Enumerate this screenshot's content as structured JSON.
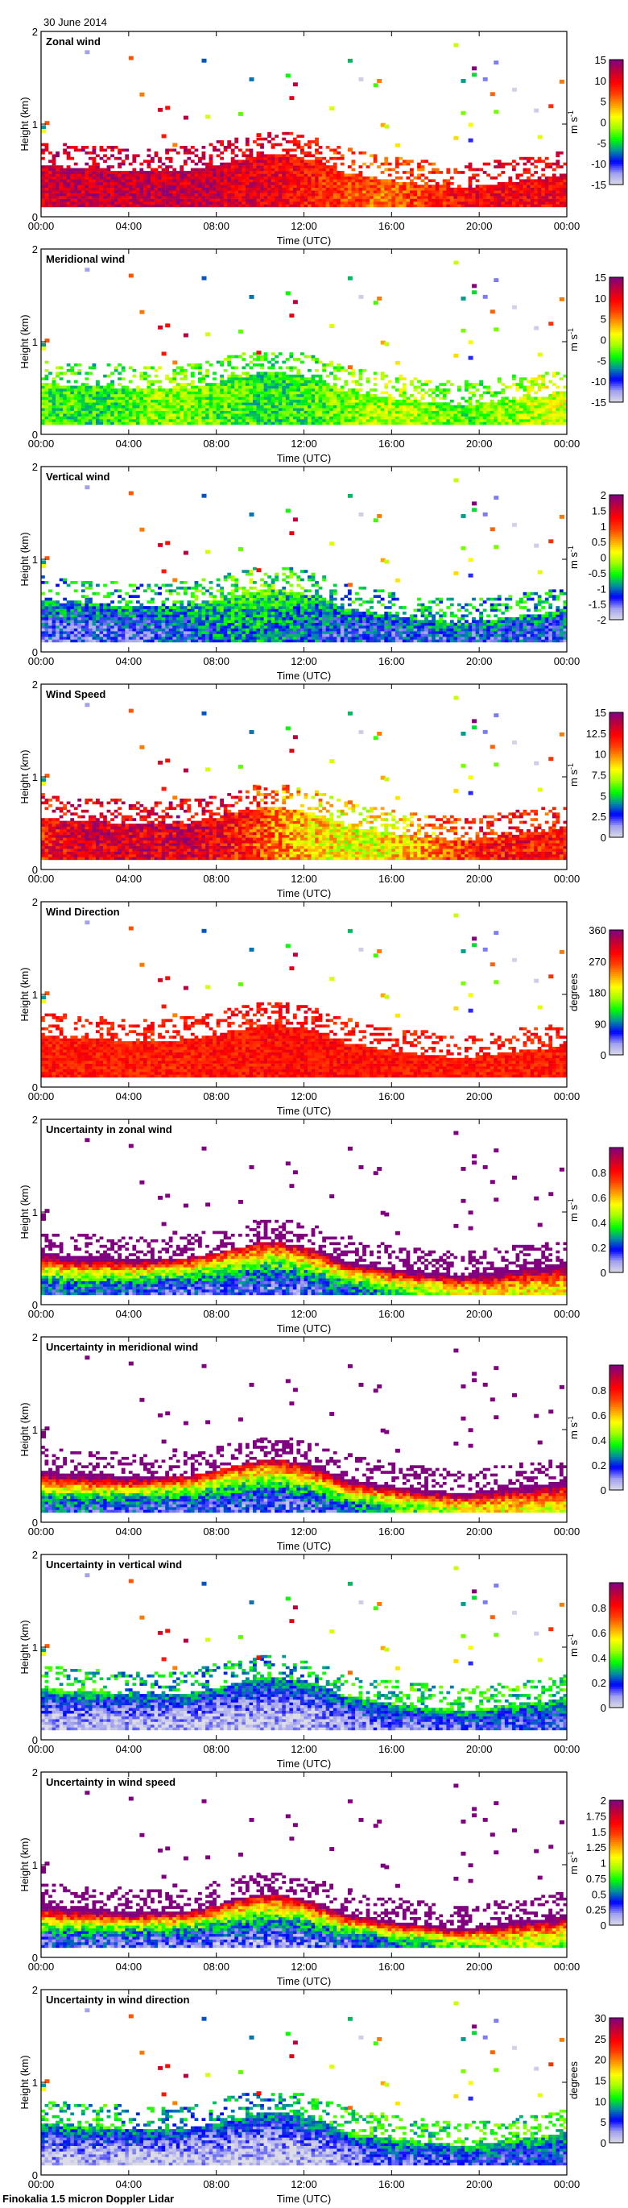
{
  "header": {
    "date": "30 June 2014"
  },
  "footer": {
    "instrument": "Finokalia 1.5 micron Doppler Lidar"
  },
  "axes": {
    "xlabel": "Time (UTC)",
    "ylabel": "Height (km)",
    "xticks": [
      "00:00",
      "04:00",
      "08:00",
      "12:00",
      "16:00",
      "20:00",
      "00:00"
    ],
    "xrange_hours": [
      0,
      24
    ],
    "yticks": [
      "0",
      "1",
      "2"
    ],
    "yrange_km": [
      0,
      2
    ]
  },
  "colormap": [
    "#dcdce6",
    "#a0a0f0",
    "#0000ff",
    "#0090a0",
    "#00ff00",
    "#a0ff00",
    "#ffff00",
    "#ffa000",
    "#ff4000",
    "#ff0000",
    "#c0003a",
    "#800080"
  ],
  "chart_data": [
    {
      "type": "heatmap",
      "title": "Zonal wind",
      "unit": "m s",
      "unit_sup": "-1",
      "range": [
        -15,
        15
      ],
      "ticks": [
        "-15",
        "-10",
        "-5",
        "0",
        "5",
        "10",
        "15"
      ],
      "tick_values": [
        -15,
        -10,
        -5,
        0,
        5,
        10,
        15
      ],
      "bl_top_km": [
        0.55,
        0.52,
        0.5,
        0.5,
        0.48,
        0.48,
        0.48,
        0.5,
        0.55,
        0.6,
        0.65,
        0.65,
        0.62,
        0.55,
        0.45,
        0.42,
        0.38,
        0.35,
        0.33,
        0.3,
        0.32,
        0.35,
        0.38,
        0.4,
        0.45
      ],
      "surface_values": [
        11,
        12,
        12,
        12,
        12,
        12,
        12,
        12,
        12,
        11,
        11,
        10,
        9,
        8,
        7,
        6,
        6,
        7,
        8,
        9,
        10,
        10,
        10,
        10,
        10
      ],
      "top_values": [
        11,
        12,
        12,
        12,
        12,
        12,
        12,
        12,
        12,
        11,
        11,
        10,
        9,
        8,
        7,
        6,
        6,
        7,
        8,
        9,
        10,
        10,
        10,
        10,
        10
      ],
      "noise": 3,
      "sparse": "random"
    },
    {
      "type": "heatmap",
      "title": "Meridional wind",
      "unit": "m s",
      "unit_sup": "-1",
      "range": [
        -15,
        15
      ],
      "ticks": [
        "-15",
        "-10",
        "-5",
        "0",
        "5",
        "10",
        "15"
      ],
      "tick_values": [
        -15,
        -10,
        -5,
        0,
        5,
        10,
        15
      ],
      "bl_top_km": [
        0.55,
        0.52,
        0.5,
        0.5,
        0.48,
        0.48,
        0.48,
        0.5,
        0.55,
        0.6,
        0.65,
        0.65,
        0.62,
        0.55,
        0.45,
        0.42,
        0.38,
        0.35,
        0.33,
        0.3,
        0.32,
        0.35,
        0.38,
        0.4,
        0.45
      ],
      "surface_values": [
        -3,
        -3.5,
        -4,
        -4,
        -3,
        -2,
        -2,
        -2,
        -3,
        -3,
        -4,
        -4,
        -3.5,
        -3,
        -2,
        -1,
        -1,
        -1,
        -2,
        -3,
        -3,
        -2,
        -1,
        0,
        0
      ],
      "top_values": [
        -3,
        -3.5,
        -4,
        -4,
        -3,
        -2,
        -2,
        -2,
        -3,
        -3,
        -4,
        -4,
        -3.5,
        -3,
        -2,
        -1,
        -1,
        -1,
        -2,
        -3,
        -3,
        -2,
        -1,
        0,
        0
      ],
      "noise": 3,
      "sparse": "random"
    },
    {
      "type": "heatmap",
      "title": "Vertical wind",
      "unit": "m s",
      "unit_sup": "-1",
      "range": [
        -2,
        2
      ],
      "ticks": [
        "-2",
        "-1.5",
        "-1",
        "-0.5",
        "0",
        "0.5",
        "1",
        "1.5",
        "2"
      ],
      "tick_values": [
        -2,
        -1.5,
        -1,
        -0.5,
        0,
        0.5,
        1,
        1.5,
        2
      ],
      "bl_top_km": [
        0.55,
        0.52,
        0.5,
        0.5,
        0.48,
        0.48,
        0.48,
        0.5,
        0.55,
        0.6,
        0.65,
        0.65,
        0.62,
        0.55,
        0.45,
        0.42,
        0.38,
        0.35,
        0.33,
        0.3,
        0.32,
        0.35,
        0.38,
        0.4,
        0.45
      ],
      "surface_values": [
        -1.4,
        -1.4,
        -1.4,
        -1.4,
        -1.4,
        -1.3,
        -1.3,
        -1.2,
        -1.0,
        -0.9,
        -0.9,
        -1.0,
        -1.1,
        -1.2,
        -1.3,
        -1.3,
        -1.3,
        -1.3,
        -1.3,
        -1.3,
        -1.3,
        -1.3,
        -1.3,
        -1.3,
        -1.3
      ],
      "top_values": [
        -0.8,
        -0.8,
        -0.8,
        -0.8,
        -0.8,
        -0.8,
        -0.7,
        -0.6,
        -0.5,
        -0.4,
        -0.4,
        -0.5,
        -0.6,
        -0.7,
        -0.8,
        -0.8,
        -0.8,
        -0.8,
        -0.8,
        -0.8,
        -0.8,
        -0.8,
        -0.8,
        -0.8,
        -0.8
      ],
      "noise": 0.5,
      "sparse": "random"
    },
    {
      "type": "heatmap",
      "title": "Wind Speed",
      "unit": "m s",
      "unit_sup": "-1",
      "range": [
        0,
        15
      ],
      "ticks": [
        "0",
        "2.5",
        "5",
        "7.5",
        "10",
        "12.5",
        "15"
      ],
      "tick_values": [
        0,
        2.5,
        5,
        7.5,
        10,
        12.5,
        15
      ],
      "bl_top_km": [
        0.55,
        0.52,
        0.5,
        0.5,
        0.48,
        0.48,
        0.48,
        0.5,
        0.55,
        0.6,
        0.65,
        0.65,
        0.62,
        0.55,
        0.45,
        0.42,
        0.38,
        0.35,
        0.33,
        0.3,
        0.32,
        0.35,
        0.38,
        0.4,
        0.45
      ],
      "surface_values": [
        12,
        12.5,
        13,
        13,
        13,
        13,
        13,
        13,
        12.5,
        12,
        11,
        10,
        9,
        8.5,
        8,
        8,
        8.5,
        9,
        10,
        11,
        12,
        12,
        12,
        12,
        12
      ],
      "top_values": [
        12,
        12.5,
        13,
        13,
        13,
        13,
        13,
        13,
        12.5,
        12,
        11,
        10,
        9,
        8.5,
        8,
        8,
        8.5,
        9,
        10,
        11,
        12,
        12,
        12,
        12,
        12
      ],
      "noise": 2,
      "sparse": "random"
    },
    {
      "type": "heatmap",
      "title": "Wind Direction",
      "unit": "degrees",
      "unit_sup": "",
      "range": [
        0,
        360
      ],
      "ticks": [
        "0",
        "90",
        "180",
        "270",
        "360"
      ],
      "tick_values": [
        0,
        90,
        180,
        270,
        360
      ],
      "bl_top_km": [
        0.55,
        0.52,
        0.5,
        0.5,
        0.48,
        0.48,
        0.48,
        0.5,
        0.55,
        0.6,
        0.65,
        0.65,
        0.62,
        0.55,
        0.45,
        0.42,
        0.38,
        0.35,
        0.33,
        0.3,
        0.32,
        0.35,
        0.38,
        0.4,
        0.45
      ],
      "surface_values": [
        282,
        282,
        282,
        282,
        282,
        282,
        282,
        282,
        285,
        285,
        285,
        288,
        290,
        290,
        290,
        288,
        285,
        285,
        282,
        282,
        282,
        282,
        282,
        282,
        282
      ],
      "top_values": [
        282,
        282,
        282,
        282,
        282,
        282,
        282,
        282,
        285,
        285,
        285,
        288,
        290,
        290,
        290,
        288,
        285,
        285,
        282,
        282,
        282,
        282,
        282,
        282,
        282
      ],
      "noise": 25,
      "sparse": "random"
    },
    {
      "type": "heatmap",
      "title": "Uncertainty in zonal wind",
      "unit": "m s",
      "unit_sup": "-1",
      "range": [
        0,
        1
      ],
      "ticks": [
        "0",
        "0.2",
        "0.4",
        "0.6",
        "0.8"
      ],
      "tick_values": [
        0,
        0.2,
        0.4,
        0.6,
        0.8
      ],
      "bl_top_km": [
        0.55,
        0.52,
        0.5,
        0.5,
        0.48,
        0.48,
        0.48,
        0.5,
        0.55,
        0.6,
        0.65,
        0.65,
        0.62,
        0.55,
        0.45,
        0.42,
        0.38,
        0.35,
        0.33,
        0.3,
        0.32,
        0.35,
        0.38,
        0.4,
        0.45
      ],
      "surface_values": [
        0.2,
        0.2,
        0.2,
        0.18,
        0.17,
        0.16,
        0.15,
        0.15,
        0.15,
        0.14,
        0.13,
        0.13,
        0.15,
        0.18,
        0.22,
        0.28,
        0.35,
        0.4,
        0.45,
        0.5,
        0.55,
        0.55,
        0.55,
        0.55,
        0.55
      ],
      "top_values": [
        1.2,
        1.2,
        1.2,
        1.2,
        1.2,
        1.1,
        1.0,
        0.95,
        0.9,
        0.9,
        0.9,
        0.9,
        1.0,
        1.1,
        1.2,
        1.2,
        1.2,
        1.2,
        1.2,
        1.2,
        1.2,
        1.2,
        1.2,
        1.2,
        1.2
      ],
      "noise": 0.12,
      "sparse": "max"
    },
    {
      "type": "heatmap",
      "title": "Uncertainty in meridional wind",
      "unit": "m s",
      "unit_sup": "-1",
      "range": [
        0,
        1
      ],
      "ticks": [
        "0",
        "0.2",
        "0.4",
        "0.6",
        "0.8"
      ],
      "tick_values": [
        0,
        0.2,
        0.4,
        0.6,
        0.8
      ],
      "bl_top_km": [
        0.55,
        0.52,
        0.5,
        0.5,
        0.48,
        0.48,
        0.48,
        0.5,
        0.55,
        0.6,
        0.65,
        0.65,
        0.62,
        0.55,
        0.45,
        0.42,
        0.38,
        0.35,
        0.33,
        0.3,
        0.32,
        0.35,
        0.38,
        0.4,
        0.45
      ],
      "surface_values": [
        0.2,
        0.2,
        0.2,
        0.18,
        0.17,
        0.16,
        0.15,
        0.15,
        0.15,
        0.14,
        0.13,
        0.13,
        0.15,
        0.18,
        0.22,
        0.28,
        0.35,
        0.4,
        0.45,
        0.5,
        0.55,
        0.55,
        0.55,
        0.55,
        0.55
      ],
      "top_values": [
        1.2,
        1.2,
        1.2,
        1.2,
        1.2,
        1.1,
        1.0,
        0.95,
        0.9,
        0.9,
        0.9,
        0.9,
        1.0,
        1.1,
        1.2,
        1.2,
        1.2,
        1.2,
        1.2,
        1.2,
        1.2,
        1.2,
        1.2,
        1.2,
        1.2
      ],
      "noise": 0.12,
      "sparse": "max"
    },
    {
      "type": "heatmap",
      "title": "Uncertainty in vertical wind",
      "unit": "m s",
      "unit_sup": "-1",
      "range": [
        0,
        1
      ],
      "ticks": [
        "0",
        "0.2",
        "0.4",
        "0.6",
        "0.8"
      ],
      "tick_values": [
        0,
        0.2,
        0.4,
        0.6,
        0.8
      ],
      "bl_top_km": [
        0.55,
        0.52,
        0.5,
        0.5,
        0.48,
        0.48,
        0.48,
        0.5,
        0.55,
        0.6,
        0.65,
        0.65,
        0.62,
        0.55,
        0.45,
        0.42,
        0.38,
        0.35,
        0.33,
        0.3,
        0.32,
        0.35,
        0.38,
        0.4,
        0.45
      ],
      "surface_values": [
        0.05,
        0.05,
        0.04,
        0.04,
        0.04,
        0.04,
        0.04,
        0.04,
        0.04,
        0.04,
        0.04,
        0.04,
        0.04,
        0.05,
        0.08,
        0.1,
        0.12,
        0.12,
        0.12,
        0.14,
        0.15,
        0.15,
        0.15,
        0.15,
        0.15
      ],
      "top_values": [
        0.35,
        0.35,
        0.35,
        0.35,
        0.3,
        0.3,
        0.3,
        0.3,
        0.3,
        0.3,
        0.3,
        0.3,
        0.3,
        0.3,
        0.35,
        0.35,
        0.35,
        0.35,
        0.35,
        0.35,
        0.35,
        0.35,
        0.35,
        0.35,
        0.35
      ],
      "noise": 0.1,
      "sparse": "random"
    },
    {
      "type": "heatmap",
      "title": "Uncertainty in wind speed",
      "unit": "m s",
      "unit_sup": "-1",
      "range": [
        0,
        2
      ],
      "ticks": [
        "0",
        "0.25",
        "0.5",
        "0.75",
        "1",
        "1.25",
        "1.5",
        "1.75",
        "2"
      ],
      "tick_values": [
        0,
        0.25,
        0.5,
        0.75,
        1,
        1.25,
        1.5,
        1.75,
        2
      ],
      "bl_top_km": [
        0.55,
        0.52,
        0.5,
        0.5,
        0.48,
        0.48,
        0.48,
        0.5,
        0.55,
        0.6,
        0.65,
        0.65,
        0.62,
        0.55,
        0.45,
        0.42,
        0.38,
        0.35,
        0.33,
        0.3,
        0.32,
        0.35,
        0.38,
        0.4,
        0.45
      ],
      "surface_values": [
        0.3,
        0.3,
        0.3,
        0.28,
        0.26,
        0.25,
        0.24,
        0.24,
        0.24,
        0.22,
        0.2,
        0.2,
        0.22,
        0.26,
        0.3,
        0.4,
        0.5,
        0.6,
        0.7,
        0.8,
        0.9,
        0.9,
        0.9,
        0.9,
        0.9
      ],
      "top_values": [
        2.3,
        2.3,
        2.3,
        2.3,
        2.3,
        2.2,
        2.1,
        2.0,
        1.9,
        1.8,
        1.8,
        1.8,
        2.0,
        2.2,
        2.3,
        2.3,
        2.3,
        2.3,
        2.3,
        2.3,
        2.3,
        2.3,
        2.3,
        2.3,
        2.3
      ],
      "noise": 0.25,
      "sparse": "max"
    },
    {
      "type": "heatmap",
      "title": "Uncertainty in wind direction",
      "unit": "degrees",
      "unit_sup": "",
      "range": [
        0,
        30
      ],
      "ticks": [
        "0",
        "5",
        "10",
        "15",
        "20",
        "25",
        "30"
      ],
      "tick_values": [
        0,
        5,
        10,
        15,
        20,
        25,
        30
      ],
      "bl_top_km": [
        0.55,
        0.52,
        0.5,
        0.5,
        0.48,
        0.48,
        0.48,
        0.5,
        0.55,
        0.6,
        0.65,
        0.65,
        0.62,
        0.55,
        0.45,
        0.42,
        0.38,
        0.35,
        0.33,
        0.3,
        0.32,
        0.35,
        0.38,
        0.4,
        0.45
      ],
      "surface_values": [
        1.5,
        1.5,
        1.4,
        1.3,
        1.2,
        1.2,
        1.1,
        1.1,
        1.1,
        1,
        1,
        1,
        1.1,
        1.3,
        2,
        3,
        4,
        4,
        4,
        4.5,
        5,
        5,
        5,
        5,
        5
      ],
      "top_values": [
        10,
        10,
        10,
        10,
        9,
        9,
        8,
        8,
        8,
        8,
        8,
        8,
        9,
        10,
        11,
        11,
        11,
        11,
        11,
        11,
        11,
        11,
        11,
        11,
        11
      ],
      "noise": 3,
      "sparse": "random"
    }
  ]
}
